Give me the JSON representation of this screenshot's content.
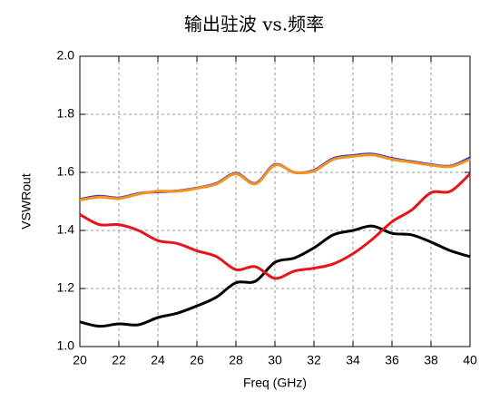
{
  "chart_data": {
    "type": "line",
    "title": "输出驻波 vs.频率",
    "x_label": "Freq (GHz)",
    "y_label": "VSWRout",
    "x": [
      20,
      21,
      22,
      23,
      24,
      25,
      26,
      27,
      28,
      29,
      30,
      31,
      32,
      33,
      34,
      35,
      36,
      37,
      38,
      39,
      40
    ],
    "series": [
      {
        "color": "#000000",
        "values": [
          1.085,
          1.07,
          1.078,
          1.075,
          1.1,
          1.115,
          1.14,
          1.17,
          1.22,
          1.225,
          1.29,
          1.305,
          1.34,
          1.385,
          1.4,
          1.415,
          1.39,
          1.385,
          1.36,
          1.33,
          1.31
        ]
      },
      {
        "color": "#e8141a",
        "values": [
          1.455,
          1.42,
          1.42,
          1.4,
          1.365,
          1.355,
          1.33,
          1.31,
          1.265,
          1.275,
          1.235,
          1.26,
          1.27,
          1.285,
          1.32,
          1.37,
          1.43,
          1.47,
          1.53,
          1.535,
          1.595
        ]
      },
      {
        "color": "#2a2ad0",
        "values": [
          1.507,
          1.518,
          1.512,
          1.527,
          1.533,
          1.536,
          1.546,
          1.562,
          1.597,
          1.562,
          1.627,
          1.6,
          1.607,
          1.648,
          1.658,
          1.663,
          1.648,
          1.637,
          1.627,
          1.622,
          1.65
        ]
      },
      {
        "color": "#f5921e",
        "values": [
          1.505,
          1.515,
          1.51,
          1.525,
          1.535,
          1.535,
          1.545,
          1.56,
          1.595,
          1.56,
          1.625,
          1.6,
          1.605,
          1.645,
          1.655,
          1.66,
          1.645,
          1.635,
          1.625,
          1.62,
          1.645
        ]
      }
    ],
    "xlim": [
      20,
      40
    ],
    "xticks": [
      20,
      22,
      24,
      26,
      28,
      30,
      32,
      34,
      36,
      38,
      40
    ],
    "ylim": [
      1,
      2
    ],
    "yticks": [
      {
        "value": 1,
        "label": "1.0"
      },
      1.2,
      1.4,
      1.6,
      1.8,
      {
        "value": 2,
        "label": "2.0"
      }
    ],
    "grid": true
  }
}
